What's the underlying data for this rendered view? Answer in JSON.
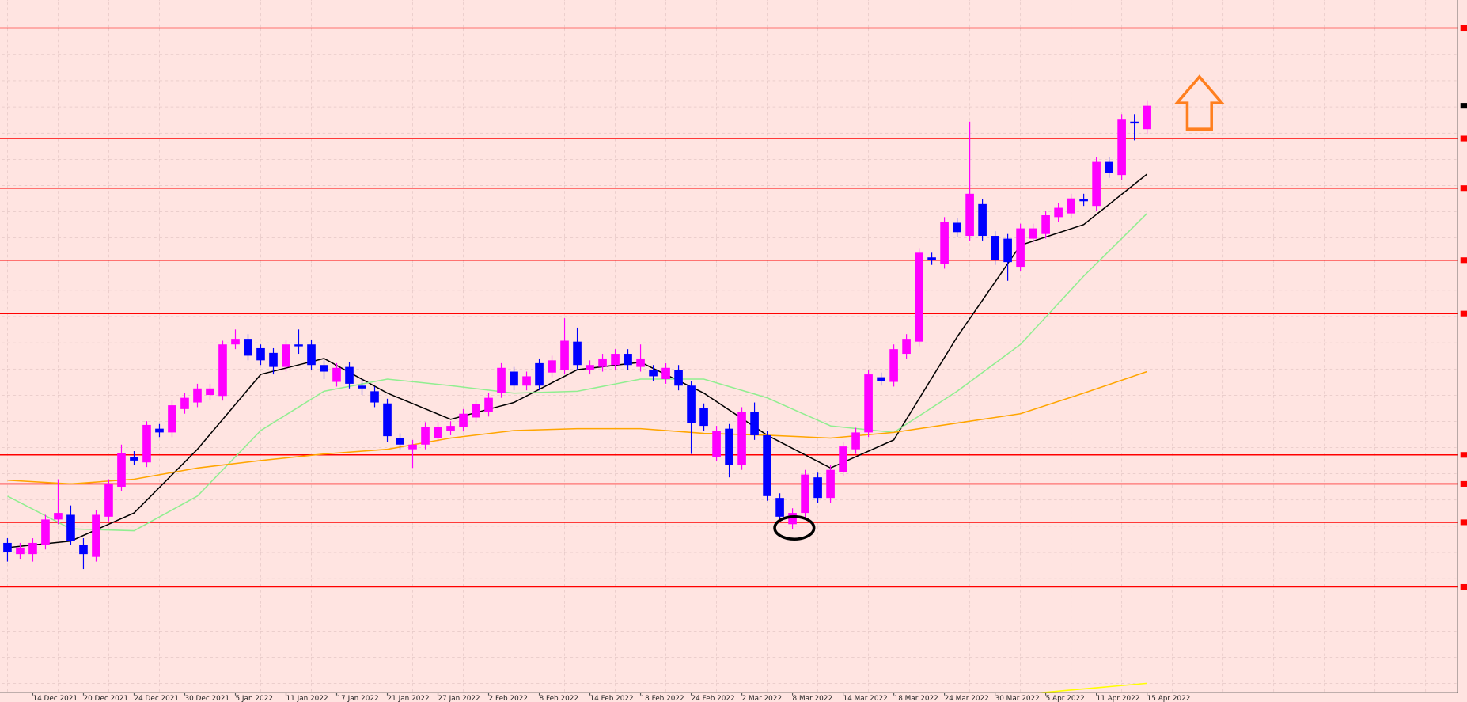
{
  "chart_data": {
    "type": "candlestick",
    "categories": [
      null,
      null,
      "14 Dec 2021",
      null,
      null,
      null,
      "20 Dec 2021",
      null,
      null,
      null,
      "24 Dec 2021",
      null,
      null,
      null,
      "30 Dec 2021",
      null,
      null,
      null,
      "5 Jan 2022",
      null,
      null,
      null,
      "11 Jan 2022",
      null,
      null,
      null,
      "17 Jan 2022",
      null,
      null,
      null,
      "21 Jan 2022",
      null,
      null,
      null,
      "27 Jan 2022",
      null,
      null,
      null,
      "2 Feb 2022",
      null,
      null,
      null,
      "8 Feb 2022",
      null,
      null,
      null,
      "14 Feb 2022",
      null,
      null,
      null,
      "18 Feb 2022",
      null,
      null,
      null,
      "24 Feb 2022",
      null,
      null,
      null,
      "2 Mar 2022",
      null,
      null,
      null,
      "8 Mar 2022",
      null,
      null,
      null,
      "14 Mar 2022",
      null,
      null,
      null,
      "18 Mar 2022",
      null,
      null,
      null,
      "24 Mar 2022",
      null,
      null,
      null,
      "30 Mar 2022",
      null,
      null,
      null,
      "5 Apr 2022",
      null,
      null,
      null,
      "11 Apr 2022",
      null,
      null,
      null,
      "15 Apr 2022"
    ],
    "open": [
      160,
      148,
      148,
      158,
      185,
      190,
      158,
      145,
      188,
      220,
      252,
      246,
      282,
      278,
      303,
      310,
      318,
      317,
      372,
      378,
      368,
      363,
      348,
      372,
      372,
      350,
      332,
      348,
      328,
      322,
      309,
      272,
      260,
      265,
      272,
      280,
      284,
      294,
      300,
      320,
      343,
      328,
      352,
      342,
      345,
      375,
      345,
      348,
      350,
      362,
      348,
      345,
      335,
      345,
      328,
      304,
      252,
      282,
      243,
      300,
      275,
      208,
      180,
      192,
      230,
      208,
      236,
      260,
      278,
      337,
      332,
      362,
      375,
      465,
      458,
      502,
      488,
      522,
      488,
      485,
      455,
      485,
      490,
      508,
      512,
      527,
      520,
      567,
      553,
      610,
      602
    ],
    "high": [
      165,
      160,
      165,
      190,
      228,
      200,
      165,
      195,
      228,
      265,
      258,
      290,
      287,
      312,
      320,
      330,
      330,
      376,
      388,
      383,
      372,
      368,
      377,
      388,
      377,
      355,
      352,
      353,
      335,
      327,
      314,
      277,
      270,
      289,
      289,
      290,
      303,
      313,
      320,
      352,
      348,
      343,
      357,
      360,
      400,
      390,
      355,
      362,
      367,
      367,
      372,
      350,
      352,
      350,
      333,
      309,
      285,
      287,
      305,
      310,
      280,
      213,
      197,
      238,
      235,
      243,
      268,
      283,
      345,
      342,
      372,
      383,
      475,
      470,
      508,
      507,
      610,
      527,
      493,
      490,
      501,
      501,
      515,
      523,
      533,
      533,
      572,
      572,
      618,
      618,
      633
    ],
    "low": [
      140,
      143,
      140,
      153,
      180,
      158,
      132,
      140,
      183,
      215,
      243,
      241,
      273,
      273,
      298,
      305,
      313,
      312,
      367,
      355,
      350,
      340,
      343,
      362,
      345,
      335,
      327,
      325,
      318,
      305,
      268,
      260,
      240,
      260,
      267,
      275,
      279,
      289,
      295,
      315,
      323,
      323,
      323,
      337,
      340,
      345,
      340,
      343,
      345,
      345,
      343,
      333,
      330,
      323,
      255,
      280,
      247,
      230,
      238,
      270,
      205,
      183,
      175,
      187,
      203,
      203,
      231,
      255,
      273,
      328,
      327,
      357,
      370,
      457,
      453,
      487,
      483,
      483,
      457,
      440,
      450,
      480,
      485,
      503,
      507,
      520,
      515,
      550,
      548,
      590,
      597
    ],
    "close": [
      150,
      155,
      160,
      185,
      192,
      162,
      148,
      190,
      223,
      256,
      248,
      286,
      278,
      307,
      315,
      325,
      325,
      372,
      378,
      360,
      355,
      348,
      372,
      370,
      350,
      343,
      347,
      330,
      325,
      310,
      274,
      265,
      265,
      284,
      284,
      285,
      298,
      308,
      315,
      347,
      328,
      338,
      328,
      355,
      376,
      350,
      350,
      357,
      362,
      350,
      357,
      338,
      347,
      328,
      288,
      285,
      280,
      243,
      300,
      275,
      210,
      188,
      192,
      233,
      208,
      238,
      263,
      278,
      340,
      333,
      367,
      378,
      470,
      462,
      503,
      492,
      533,
      488,
      462,
      460,
      496,
      496,
      510,
      518,
      528,
      525,
      567,
      555,
      613,
      608,
      627
    ],
    "up_color": "#ff00ff",
    "down_color": "#0000ff",
    "ylim": [
      0,
      740
    ],
    "levels": [
      710,
      592,
      539,
      462,
      405,
      254,
      223,
      182,
      113
    ],
    "level_color": "#ff0000",
    "overlays": [
      {
        "color": "#000000",
        "x": [
          0,
          5,
          10,
          15,
          20,
          25,
          30,
          35,
          40,
          45,
          50,
          55,
          60,
          65,
          70,
          75,
          80,
          85,
          90
        ],
        "values": [
          155,
          162,
          192,
          260,
          340,
          357,
          320,
          292,
          310,
          345,
          353,
          320,
          275,
          240,
          270,
          380,
          478,
          500,
          554
        ]
      },
      {
        "color": "#90ee90",
        "x": [
          0,
          5,
          10,
          15,
          20,
          25,
          30,
          35,
          40,
          45,
          50,
          55,
          60,
          65,
          70,
          75,
          80,
          85,
          90
        ],
        "values": [
          210,
          175,
          173,
          210,
          280,
          322,
          335,
          328,
          320,
          322,
          335,
          335,
          315,
          285,
          278,
          322,
          372,
          445,
          512
        ]
      },
      {
        "color": "#ffa500",
        "x": [
          0,
          5,
          10,
          15,
          20,
          25,
          30,
          35,
          40,
          45,
          50,
          55,
          60,
          65,
          70,
          75,
          80,
          85,
          90
        ],
        "values": [
          227,
          223,
          228,
          240,
          248,
          255,
          260,
          272,
          280,
          282,
          282,
          277,
          275,
          272,
          278,
          288,
          298,
          320,
          343
        ]
      },
      {
        "color": "#ffff00",
        "x": [
          80,
          85,
          90
        ],
        "values": [
          -2,
          4,
          10
        ]
      }
    ],
    "grid": true
  }
}
